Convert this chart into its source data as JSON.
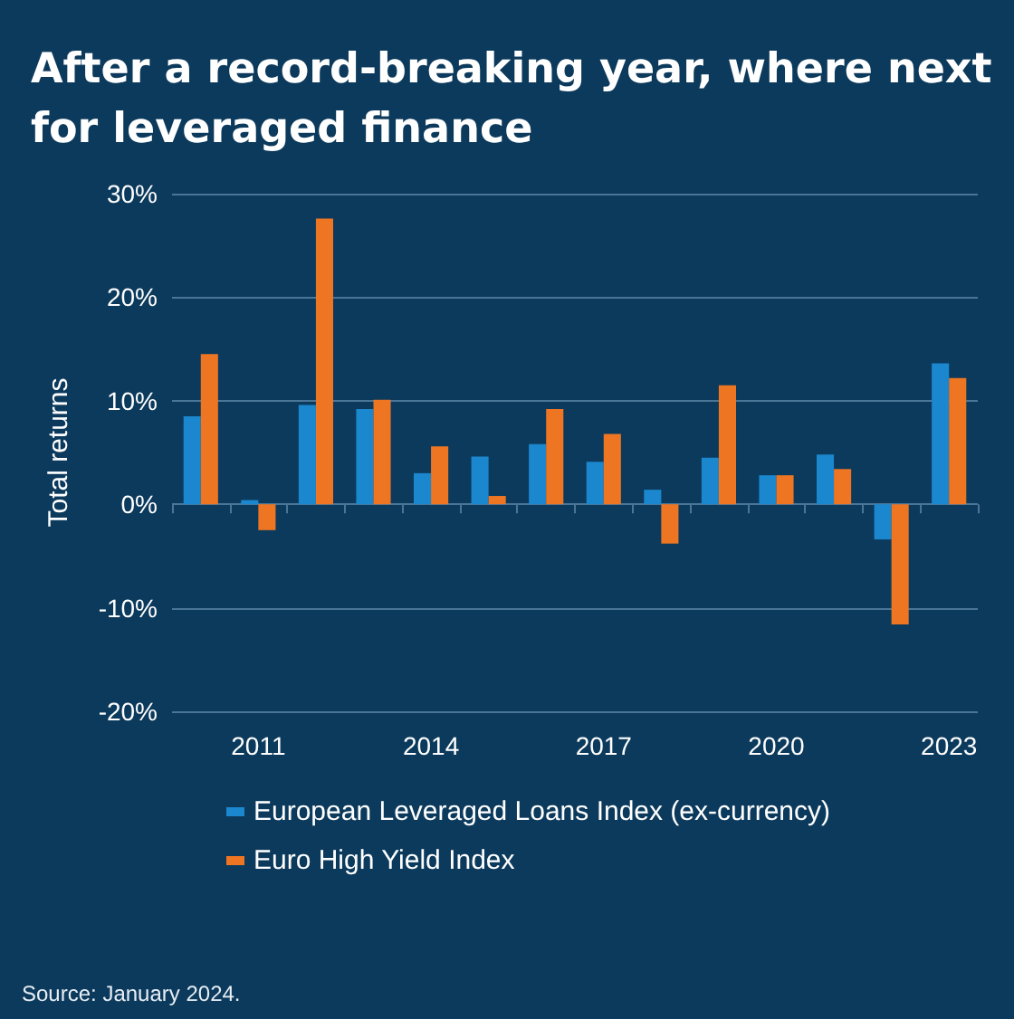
{
  "chart_data": {
    "type": "bar",
    "title": "After a record-breaking year, where next for leveraged finance",
    "ylabel": "Total returns",
    "categories": [
      null,
      "2011",
      null,
      null,
      "2014",
      null,
      null,
      "2017",
      null,
      null,
      "2020",
      null,
      null,
      "2023"
    ],
    "series": [
      {
        "name": "European Leveraged Loans Index (ex-currency)",
        "color": "#1b87cf",
        "values": [
          8.5,
          0.4,
          9.6,
          9.2,
          3.0,
          4.6,
          5.8,
          4.1,
          1.4,
          4.5,
          2.8,
          4.8,
          -3.4,
          13.6
        ]
      },
      {
        "name": "Euro High Yield Index",
        "color": "#ee7623",
        "values": [
          14.5,
          -2.5,
          27.6,
          10.1,
          5.6,
          0.8,
          9.2,
          6.8,
          -3.8,
          11.5,
          2.8,
          3.4,
          -11.6,
          12.2
        ]
      }
    ],
    "ylim": [
      -20,
      30
    ],
    "yticks": [
      {
        "value": -20,
        "label": "-20%"
      },
      {
        "value": -10,
        "label": "-10%"
      },
      {
        "value": 0,
        "label": "0%"
      },
      {
        "value": 10,
        "label": "10%"
      },
      {
        "value": 20,
        "label": "20%"
      },
      {
        "value": 30,
        "label": "30%"
      }
    ],
    "grid": "y",
    "legend": "bottom",
    "annotations": [
      "Source: January 2024."
    ]
  }
}
